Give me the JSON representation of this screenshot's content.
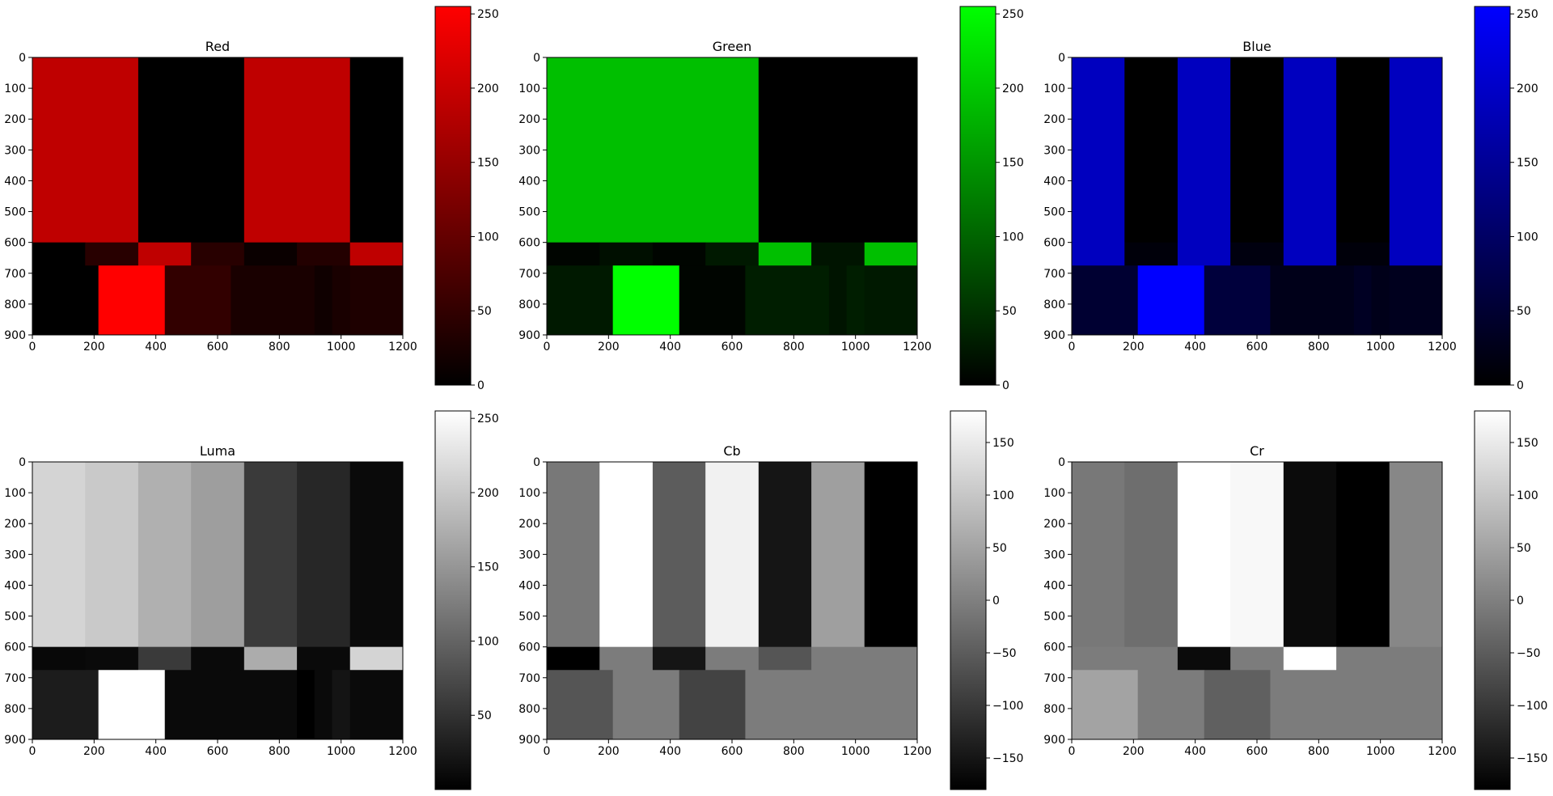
{
  "figure": {
    "titles": [
      "Red",
      "Green",
      "Blue",
      "Luma",
      "Cb",
      "Cr"
    ]
  },
  "chart_data": [
    {
      "type": "heatmap",
      "title": "Red",
      "colormap": "black-to-red",
      "colormap_colors": [
        "#000000",
        "#ff0000"
      ],
      "x_ticks": [
        0,
        200,
        400,
        600,
        800,
        1000,
        1200
      ],
      "y_ticks": [
        0,
        100,
        200,
        300,
        400,
        500,
        600,
        700,
        800,
        900
      ],
      "xlim": [
        0,
        1200
      ],
      "ylim": [
        900,
        0
      ],
      "clim": [
        0,
        255
      ],
      "colorbar_ticks": [
        0,
        50,
        100,
        150,
        200,
        250
      ],
      "column_edges_top": [
        0,
        171,
        343,
        514,
        686,
        857,
        1029,
        1200
      ],
      "row_top": [
        0,
        600
      ],
      "values_top": [
        191,
        191,
        0,
        0,
        191,
        191,
        0
      ],
      "column_edges_mid": [
        0,
        171,
        343,
        514,
        686,
        857,
        1029,
        1200
      ],
      "row_mid": [
        600,
        675
      ],
      "values_mid": [
        0,
        40,
        191,
        40,
        10,
        35,
        191
      ],
      "column_edges_bottom": [
        0,
        214,
        429,
        643,
        857,
        914,
        971,
        1029,
        1200
      ],
      "row_bottom": [
        675,
        900
      ],
      "values_bottom": [
        0,
        255,
        50,
        25,
        25,
        15,
        25,
        30
      ]
    },
    {
      "type": "heatmap",
      "title": "Green",
      "colormap": "black-to-green",
      "colormap_colors": [
        "#000000",
        "#00ff00"
      ],
      "x_ticks": [
        0,
        200,
        400,
        600,
        800,
        1000,
        1200
      ],
      "y_ticks": [
        0,
        100,
        200,
        300,
        400,
        500,
        600,
        700,
        800,
        900
      ],
      "xlim": [
        0,
        1200
      ],
      "ylim": [
        900,
        0
      ],
      "clim": [
        0,
        255
      ],
      "colorbar_ticks": [
        0,
        50,
        100,
        150,
        200,
        250
      ],
      "column_edges_top": [
        0,
        171,
        343,
        514,
        686,
        857,
        1029,
        1200
      ],
      "row_top": [
        0,
        600
      ],
      "values_top": [
        191,
        191,
        191,
        191,
        0,
        0,
        0
      ],
      "column_edges_mid": [
        0,
        171,
        343,
        514,
        686,
        857,
        1029,
        1200
      ],
      "row_mid": [
        600,
        675
      ],
      "values_mid": [
        5,
        15,
        5,
        25,
        191,
        20,
        191
      ],
      "column_edges_bottom": [
        0,
        214,
        429,
        643,
        857,
        914,
        971,
        1029,
        1200
      ],
      "row_bottom": [
        675,
        900
      ],
      "values_bottom": [
        25,
        255,
        5,
        30,
        30,
        20,
        30,
        25
      ]
    },
    {
      "type": "heatmap",
      "title": "Blue",
      "colormap": "black-to-blue",
      "colormap_colors": [
        "#000000",
        "#0000ff"
      ],
      "x_ticks": [
        0,
        200,
        400,
        600,
        800,
        1000,
        1200
      ],
      "y_ticks": [
        0,
        100,
        200,
        300,
        400,
        500,
        600,
        700,
        800,
        900
      ],
      "xlim": [
        0,
        1200
      ],
      "ylim": [
        900,
        0
      ],
      "clim": [
        0,
        255
      ],
      "colorbar_ticks": [
        0,
        50,
        100,
        150,
        200,
        250
      ],
      "column_edges_top": [
        0,
        171,
        343,
        514,
        686,
        857,
        1029,
        1200
      ],
      "row_top": [
        0,
        600
      ],
      "values_top": [
        191,
        0,
        191,
        0,
        191,
        0,
        191
      ],
      "column_edges_mid": [
        0,
        171,
        343,
        514,
        686,
        857,
        1029,
        1200
      ],
      "row_mid": [
        600,
        675
      ],
      "values_mid": [
        191,
        10,
        191,
        15,
        191,
        10,
        191
      ],
      "column_edges_bottom": [
        0,
        214,
        429,
        643,
        857,
        914,
        971,
        1029,
        1200
      ],
      "row_bottom": [
        675,
        900
      ],
      "values_bottom": [
        50,
        255,
        60,
        25,
        25,
        35,
        25,
        30
      ]
    },
    {
      "type": "heatmap",
      "title": "Luma",
      "colormap": "gray",
      "colormap_colors": [
        "#000000",
        "#ffffff"
      ],
      "x_ticks": [
        0,
        200,
        400,
        600,
        800,
        1000,
        1200
      ],
      "y_ticks": [
        0,
        100,
        200,
        300,
        400,
        500,
        600,
        700,
        800,
        900
      ],
      "xlim": [
        0,
        1200
      ],
      "ylim": [
        900,
        0
      ],
      "clim": [
        0,
        255
      ],
      "colorbar_ticks": [
        50,
        100,
        150,
        200,
        250
      ],
      "column_edges_top": [
        0,
        171,
        343,
        514,
        686,
        857,
        1029,
        1200
      ],
      "row_top": [
        0,
        600
      ],
      "values_top": [
        212,
        201,
        176,
        158,
        58,
        39,
        10
      ],
      "column_edges_mid": [
        0,
        171,
        343,
        514,
        686,
        857,
        1029,
        1200
      ],
      "row_mid": [
        600,
        675
      ],
      "values_mid": [
        8,
        10,
        58,
        10,
        172,
        10,
        212
      ],
      "column_edges_bottom": [
        0,
        214,
        429,
        643,
        857,
        914,
        971,
        1029,
        1200
      ],
      "row_bottom": [
        675,
        900
      ],
      "values_bottom": [
        28,
        255,
        10,
        10,
        0,
        10,
        20,
        10
      ]
    },
    {
      "type": "heatmap",
      "title": "Cb",
      "colormap": "gray",
      "colormap_colors": [
        "#000000",
        "#ffffff"
      ],
      "x_ticks": [
        0,
        200,
        400,
        600,
        800,
        1000,
        1200
      ],
      "y_ticks": [
        0,
        100,
        200,
        300,
        400,
        500,
        600,
        700,
        800,
        900
      ],
      "xlim": [
        0,
        1200
      ],
      "ylim": [
        900,
        0
      ],
      "clim": [
        -180,
        180
      ],
      "colorbar_ticks": [
        -150,
        -100,
        -50,
        0,
        50,
        100,
        150
      ],
      "column_edges_top": [
        0,
        171,
        343,
        514,
        686,
        857,
        1029,
        1200
      ],
      "row_top": [
        0,
        600
      ],
      "values_top": [
        -10,
        180,
        -50,
        160,
        -150,
        45,
        -180
      ],
      "column_edges_mid": [
        0,
        171,
        343,
        514,
        686,
        857,
        1029,
        1200
      ],
      "row_mid": [
        600,
        675
      ],
      "values_mid": [
        -180,
        -5,
        -150,
        -5,
        -60,
        -5,
        -5
      ],
      "column_edges_bottom": [
        0,
        214,
        429,
        643,
        857,
        914,
        971,
        1029,
        1200
      ],
      "row_bottom": [
        675,
        900
      ],
      "values_bottom": [
        -60,
        -5,
        -85,
        -5,
        -5,
        -5,
        -5,
        -5
      ]
    },
    {
      "type": "heatmap",
      "title": "Cr",
      "colormap": "gray",
      "colormap_colors": [
        "#000000",
        "#ffffff"
      ],
      "x_ticks": [
        0,
        200,
        400,
        600,
        800,
        1000,
        1200
      ],
      "y_ticks": [
        0,
        100,
        200,
        300,
        400,
        500,
        600,
        700,
        800,
        900
      ],
      "xlim": [
        0,
        1200
      ],
      "ylim": [
        900,
        0
      ],
      "clim": [
        -180,
        180
      ],
      "colorbar_ticks": [
        -150,
        -100,
        -50,
        0,
        50,
        100,
        150
      ],
      "column_edges_top": [
        0,
        171,
        343,
        514,
        686,
        857,
        1029,
        1200
      ],
      "row_top": [
        0,
        600
      ],
      "values_top": [
        -10,
        -25,
        180,
        170,
        -165,
        -180,
        10
      ],
      "column_edges_mid": [
        0,
        171,
        343,
        514,
        686,
        857,
        1029,
        1200
      ],
      "row_mid": [
        600,
        675
      ],
      "values_mid": [
        -5,
        -5,
        -165,
        -5,
        180,
        -5,
        -5
      ],
      "column_edges_bottom": [
        0,
        214,
        429,
        643,
        857,
        914,
        971,
        1029,
        1200
      ],
      "row_bottom": [
        675,
        900
      ],
      "values_bottom": [
        50,
        -5,
        -45,
        -5,
        -5,
        -5,
        -5,
        -5
      ]
    }
  ]
}
